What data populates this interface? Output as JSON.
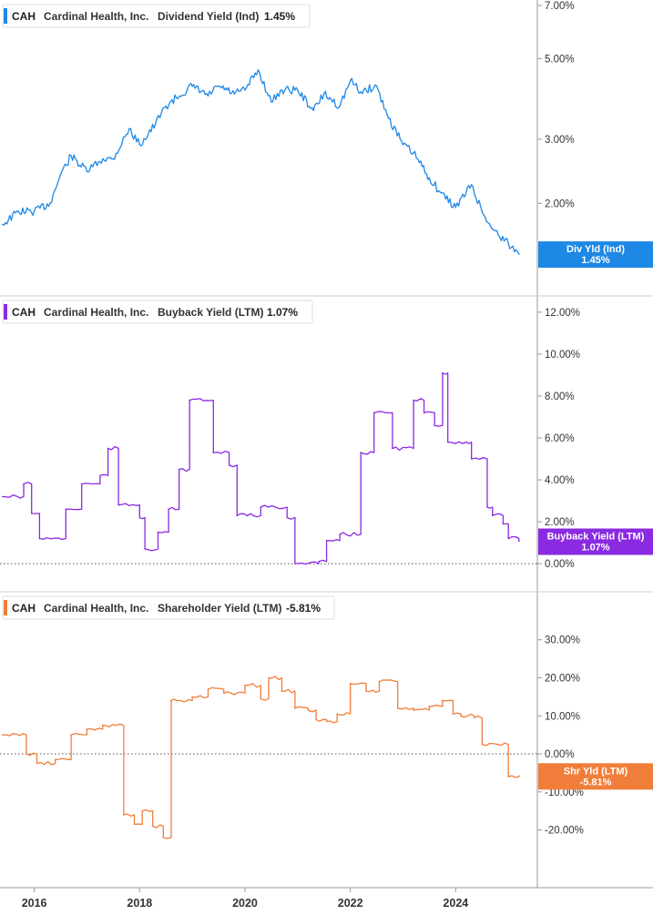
{
  "chart_data": [
    {
      "type": "line",
      "ticker": "CAH",
      "company": "Cardinal Health, Inc.",
      "metric": "Dividend Yield (Ind)",
      "current_value": "1.45%",
      "badge": [
        "Div Yld (Ind)",
        "1.45%"
      ],
      "color": "#1E88E5",
      "scale": "log",
      "ylim": [
        1.3,
        7.0
      ],
      "yticks": [
        "7.00%",
        "5.00%",
        "3.00%",
        "2.00%"
      ],
      "ytick_values": [
        7,
        5,
        3,
        2
      ],
      "zero_line": false,
      "step": false,
      "x": [
        2015.4,
        2015.7,
        2016.0,
        2016.3,
        2016.5,
        2016.7,
        2017.0,
        2017.3,
        2017.5,
        2017.8,
        2018.0,
        2018.3,
        2018.5,
        2018.7,
        2019.0,
        2019.3,
        2019.5,
        2019.8,
        2020.0,
        2020.25,
        2020.5,
        2020.7,
        2021.0,
        2021.3,
        2021.5,
        2021.8,
        2022.0,
        2022.2,
        2022.5,
        2022.7,
        2023.0,
        2023.2,
        2023.5,
        2023.7,
        2024.0,
        2024.3,
        2024.5,
        2024.7,
        2025.0,
        2025.2
      ],
      "values": [
        1.75,
        1.9,
        1.9,
        2.0,
        2.4,
        2.7,
        2.45,
        2.65,
        2.65,
        3.2,
        2.9,
        3.3,
        3.7,
        3.9,
        4.2,
        3.95,
        4.2,
        4.0,
        4.1,
        4.65,
        3.8,
        4.1,
        4.1,
        3.6,
        4.0,
        3.7,
        4.35,
        4.05,
        4.2,
        3.5,
        2.9,
        2.75,
        2.35,
        2.15,
        1.95,
        2.25,
        1.9,
        1.7,
        1.55,
        1.45
      ]
    },
    {
      "type": "line",
      "ticker": "CAH",
      "company": "Cardinal Health, Inc.",
      "metric": "Buyback Yield (LTM)",
      "current_value": "1.07%",
      "badge": [
        "Buyback Yield (LTM)",
        "1.07%"
      ],
      "color": "#8A2BE2",
      "scale": "linear",
      "ylim": [
        -0.3,
        12.3
      ],
      "yticks": [
        "12.00%",
        "10.00%",
        "8.00%",
        "6.00%",
        "4.00%",
        "2.00%",
        "0.00%"
      ],
      "ytick_values": [
        12,
        10,
        8,
        6,
        4,
        2,
        0
      ],
      "zero_line": true,
      "step": true,
      "x": [
        2015.4,
        2015.8,
        2015.95,
        2016.1,
        2016.6,
        2016.9,
        2017.25,
        2017.4,
        2017.6,
        2018.0,
        2018.1,
        2018.35,
        2018.55,
        2018.75,
        2018.95,
        2019.4,
        2019.7,
        2019.85,
        2020.3,
        2020.8,
        2020.95,
        2021.4,
        2021.55,
        2021.8,
        2022.2,
        2022.45,
        2022.8,
        2023.2,
        2023.4,
        2023.6,
        2023.75,
        2023.85,
        2024.2,
        2024.3,
        2024.6,
        2024.7,
        2024.9,
        2025.0,
        2025.2
      ],
      "values": [
        3.2,
        3.8,
        2.4,
        1.2,
        2.6,
        3.8,
        4.2,
        5.5,
        2.8,
        2.2,
        0.7,
        1.5,
        2.6,
        4.5,
        7.8,
        5.3,
        4.7,
        2.3,
        2.7,
        2.2,
        0.0,
        0.1,
        1.1,
        1.4,
        5.3,
        7.2,
        5.5,
        7.8,
        7.2,
        6.6,
        9.1,
        5.8,
        5.8,
        5.0,
        2.7,
        2.3,
        1.9,
        1.2,
        1.07
      ]
    },
    {
      "type": "line",
      "ticker": "CAH",
      "company": "Cardinal Health, Inc.",
      "metric": "Shareholder Yield (LTM)",
      "current_value": "-5.81%",
      "badge": [
        "Shr Yld (LTM)",
        "-5.81%"
      ],
      "color": "#F07E3A",
      "scale": "linear",
      "ylim": [
        -28,
        34
      ],
      "yticks": [
        "30.00%",
        "20.00%",
        "10.00%",
        "0.00%",
        "-10.00%",
        "-20.00%"
      ],
      "ytick_values": [
        30,
        20,
        10,
        0,
        -10,
        -20
      ],
      "zero_line": true,
      "step": true,
      "x": [
        2015.4,
        2015.85,
        2016.05,
        2016.4,
        2016.7,
        2017.0,
        2017.3,
        2017.55,
        2017.7,
        2017.9,
        2018.05,
        2018.25,
        2018.45,
        2018.6,
        2018.7,
        2019.0,
        2019.3,
        2019.6,
        2020.0,
        2020.3,
        2020.45,
        2020.7,
        2020.95,
        2021.2,
        2021.35,
        2021.55,
        2021.75,
        2022.0,
        2022.3,
        2022.55,
        2022.9,
        2023.2,
        2023.5,
        2023.75,
        2023.95,
        2024.1,
        2024.35,
        2024.5,
        2024.8,
        2025.0,
        2025.2
      ],
      "values": [
        5.0,
        0.0,
        -2.5,
        -1.5,
        5.0,
        6.5,
        7.5,
        7.5,
        -16.0,
        -18.5,
        -15.0,
        -19.0,
        -22.0,
        14.0,
        14.0,
        15.0,
        17.0,
        16.0,
        18.0,
        14.5,
        20.0,
        16.5,
        12.0,
        11.5,
        9.0,
        8.5,
        10.5,
        18.5,
        16.5,
        19.0,
        12.0,
        11.5,
        12.5,
        14.0,
        10.5,
        10.0,
        9.5,
        2.5,
        2.5,
        -6.0,
        -5.81
      ]
    }
  ],
  "x_axis": {
    "labels": [
      "2016",
      "2018",
      "2020",
      "2022",
      "2024"
    ],
    "values": [
      2016,
      2018,
      2020,
      2022,
      2024
    ],
    "range": [
      2015.35,
      2025.55
    ]
  }
}
